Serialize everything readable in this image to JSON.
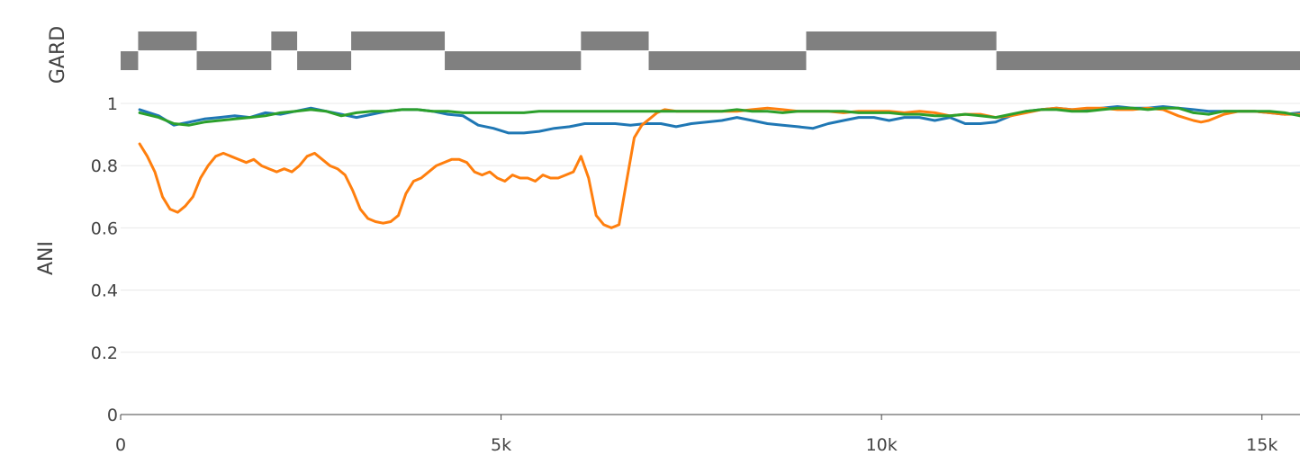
{
  "chart_data": {
    "type": "line",
    "title": "",
    "xlabel": "",
    "ylabel": "ANI",
    "xlim": [
      0,
      15500
    ],
    "ylim": [
      0,
      1
    ],
    "x_ticks": [
      0,
      5000,
      10000,
      15000
    ],
    "x_tick_labels": [
      "0",
      "5k",
      "10k",
      "15k"
    ],
    "y_ticks": [
      0,
      0.2,
      0.4,
      0.6,
      0.8,
      1
    ],
    "y_tick_labels": [
      "0",
      "0.2",
      "0.4",
      "0.6",
      "0.8",
      "1"
    ],
    "grid": true,
    "legend": "none",
    "gard_track": {
      "label": "GARD",
      "color": "#808080",
      "segments": [
        {
          "start": 0,
          "end": 230,
          "level": "low"
        },
        {
          "start": 230,
          "end": 1000,
          "level": "high"
        },
        {
          "start": 1000,
          "end": 1980,
          "level": "low"
        },
        {
          "start": 1980,
          "end": 2320,
          "level": "high"
        },
        {
          "start": 2320,
          "end": 3030,
          "level": "low"
        },
        {
          "start": 3030,
          "end": 4260,
          "level": "high"
        },
        {
          "start": 4260,
          "end": 6050,
          "level": "low"
        },
        {
          "start": 6050,
          "end": 6940,
          "level": "high"
        },
        {
          "start": 6940,
          "end": 9010,
          "level": "low"
        },
        {
          "start": 9010,
          "end": 11510,
          "level": "high"
        },
        {
          "start": 11510,
          "end": 15500,
          "level": "low"
        }
      ]
    },
    "series": [
      {
        "color": "#1f77b4",
        "x": [
          250,
          500,
          700,
          900,
          1100,
          1300,
          1500,
          1700,
          1900,
          2100,
          2300,
          2500,
          2700,
          2900,
          3100,
          3300,
          3500,
          3700,
          3900,
          4100,
          4300,
          4500,
          4700,
          4900,
          5100,
          5300,
          5500,
          5700,
          5900,
          6100,
          6300,
          6500,
          6700,
          6900,
          7100,
          7300,
          7500,
          7700,
          7900,
          8100,
          8300,
          8500,
          8700,
          8900,
          9100,
          9300,
          9500,
          9700,
          9900,
          10100,
          10300,
          10500,
          10700,
          10900,
          11100,
          11300,
          11500,
          11700,
          11900,
          12100,
          12300,
          12500,
          12700,
          12900,
          13100,
          13300,
          13500,
          13700,
          13900,
          14100,
          14300,
          14500,
          14700,
          14900,
          15100,
          15300,
          15500
        ],
        "y": [
          0.98,
          0.96,
          0.93,
          0.94,
          0.95,
          0.955,
          0.96,
          0.955,
          0.97,
          0.965,
          0.975,
          0.985,
          0.975,
          0.965,
          0.955,
          0.965,
          0.975,
          0.98,
          0.98,
          0.975,
          0.965,
          0.96,
          0.93,
          0.92,
          0.905,
          0.905,
          0.91,
          0.92,
          0.925,
          0.935,
          0.935,
          0.935,
          0.93,
          0.935,
          0.935,
          0.925,
          0.935,
          0.94,
          0.945,
          0.955,
          0.945,
          0.935,
          0.93,
          0.925,
          0.92,
          0.935,
          0.945,
          0.955,
          0.955,
          0.945,
          0.955,
          0.955,
          0.945,
          0.955,
          0.935,
          0.935,
          0.94,
          0.96,
          0.975,
          0.98,
          0.985,
          0.98,
          0.98,
          0.985,
          0.99,
          0.985,
          0.985,
          0.99,
          0.985,
          0.98,
          0.975,
          0.975,
          0.975,
          0.975,
          0.97,
          0.965,
          0.97
        ]
      },
      {
        "color": "#ff7f0e",
        "x": [
          250,
          350,
          450,
          550,
          650,
          750,
          850,
          950,
          1050,
          1150,
          1250,
          1350,
          1450,
          1550,
          1650,
          1750,
          1850,
          1950,
          2050,
          2150,
          2250,
          2350,
          2450,
          2550,
          2650,
          2750,
          2850,
          2950,
          3050,
          3150,
          3250,
          3350,
          3450,
          3550,
          3650,
          3750,
          3850,
          3950,
          4050,
          4150,
          4250,
          4350,
          4450,
          4550,
          4650,
          4750,
          4850,
          4950,
          5050,
          5150,
          5250,
          5350,
          5450,
          5550,
          5650,
          5750,
          5850,
          5950,
          6050,
          6150,
          6250,
          6350,
          6450,
          6550,
          6650,
          6750,
          6850,
          6950,
          7050,
          7150,
          7300,
          7500,
          7700,
          7900,
          8100,
          8300,
          8500,
          8700,
          8900,
          9100,
          9300,
          9500,
          9700,
          9900,
          10100,
          10300,
          10500,
          10700,
          10900,
          11100,
          11300,
          11500,
          11700,
          11900,
          12100,
          12300,
          12500,
          12700,
          12900,
          13100,
          13300,
          13500,
          13700,
          13900,
          14100,
          14200,
          14300,
          14400,
          14500,
          14700,
          14900,
          15100,
          15300,
          15500
        ],
        "y": [
          0.87,
          0.83,
          0.78,
          0.7,
          0.66,
          0.65,
          0.67,
          0.7,
          0.76,
          0.8,
          0.83,
          0.84,
          0.83,
          0.82,
          0.81,
          0.82,
          0.8,
          0.79,
          0.78,
          0.79,
          0.78,
          0.8,
          0.83,
          0.84,
          0.82,
          0.8,
          0.79,
          0.77,
          0.72,
          0.66,
          0.63,
          0.62,
          0.615,
          0.62,
          0.64,
          0.71,
          0.75,
          0.76,
          0.78,
          0.8,
          0.81,
          0.82,
          0.82,
          0.81,
          0.78,
          0.77,
          0.78,
          0.76,
          0.75,
          0.77,
          0.76,
          0.76,
          0.75,
          0.77,
          0.76,
          0.76,
          0.77,
          0.78,
          0.83,
          0.76,
          0.64,
          0.61,
          0.6,
          0.61,
          0.75,
          0.89,
          0.93,
          0.95,
          0.97,
          0.98,
          0.975,
          0.975,
          0.975,
          0.975,
          0.975,
          0.98,
          0.985,
          0.98,
          0.975,
          0.975,
          0.975,
          0.97,
          0.975,
          0.975,
          0.975,
          0.97,
          0.975,
          0.97,
          0.96,
          0.965,
          0.965,
          0.955,
          0.96,
          0.97,
          0.98,
          0.985,
          0.98,
          0.985,
          0.985,
          0.98,
          0.98,
          0.985,
          0.98,
          0.96,
          0.945,
          0.94,
          0.945,
          0.955,
          0.965,
          0.975,
          0.975,
          0.97,
          0.965,
          0.965
        ]
      },
      {
        "color": "#2ca02c",
        "x": [
          250,
          500,
          700,
          900,
          1100,
          1300,
          1500,
          1700,
          1900,
          2100,
          2300,
          2500,
          2700,
          2900,
          3100,
          3300,
          3500,
          3700,
          3900,
          4100,
          4300,
          4500,
          4700,
          4900,
          5100,
          5300,
          5500,
          5700,
          5900,
          6100,
          6300,
          6500,
          6700,
          6900,
          7100,
          7300,
          7500,
          7700,
          7900,
          8100,
          8300,
          8500,
          8700,
          8900,
          9100,
          9300,
          9500,
          9700,
          9900,
          10100,
          10300,
          10500,
          10700,
          10900,
          11100,
          11300,
          11500,
          11700,
          11900,
          12100,
          12300,
          12500,
          12700,
          12900,
          13100,
          13300,
          13500,
          13700,
          13900,
          14100,
          14300,
          14500,
          14700,
          14900,
          15100,
          15300,
          15500
        ],
        "y": [
          0.97,
          0.955,
          0.935,
          0.93,
          0.94,
          0.945,
          0.95,
          0.955,
          0.96,
          0.97,
          0.975,
          0.98,
          0.975,
          0.96,
          0.97,
          0.975,
          0.975,
          0.98,
          0.98,
          0.975,
          0.975,
          0.97,
          0.97,
          0.97,
          0.97,
          0.97,
          0.975,
          0.975,
          0.975,
          0.975,
          0.975,
          0.975,
          0.975,
          0.975,
          0.975,
          0.975,
          0.975,
          0.975,
          0.975,
          0.98,
          0.975,
          0.975,
          0.97,
          0.975,
          0.975,
          0.975,
          0.975,
          0.97,
          0.97,
          0.97,
          0.965,
          0.965,
          0.96,
          0.96,
          0.965,
          0.96,
          0.955,
          0.965,
          0.975,
          0.98,
          0.98,
          0.975,
          0.975,
          0.98,
          0.985,
          0.985,
          0.98,
          0.985,
          0.985,
          0.97,
          0.965,
          0.975,
          0.975,
          0.975,
          0.975,
          0.97,
          0.96
        ]
      }
    ]
  }
}
